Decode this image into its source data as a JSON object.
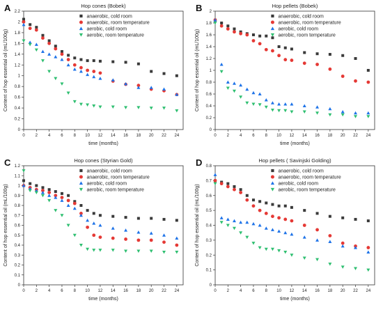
{
  "colors": {
    "anaerobic_cold": "#3a3a3a",
    "anaerobic_room": "#e53935",
    "aerobic_cold": "#1e73e8",
    "aerobic_room": "#2fbf71"
  },
  "chart_data": [
    {
      "panel_label": "A",
      "type": "scatter",
      "title": "Hop cones (Bobek)",
      "xlabel": "time (months)",
      "ylabel": "Content of hop essential oil (mL/100g)",
      "xlim": [
        0,
        25
      ],
      "ylim": [
        0,
        2.2
      ],
      "xticks": [
        0,
        2,
        4,
        6,
        8,
        10,
        12,
        14,
        16,
        18,
        20,
        22,
        24
      ],
      "yticks": [
        0,
        0.2,
        0.4,
        0.6,
        0.8,
        1,
        1.2,
        1.4,
        1.6,
        1.8,
        2,
        2.2
      ],
      "x": [
        0,
        1,
        2,
        3,
        4,
        5,
        6,
        7,
        8,
        9,
        10,
        11,
        12,
        14,
        16,
        18,
        20,
        22,
        24
      ],
      "legend_position": "top-right",
      "series": [
        {
          "name": "anaerobic, cold room",
          "marker": "square",
          "color_key": "anaerobic_cold",
          "values": [
            2.05,
            1.95,
            1.9,
            1.75,
            1.65,
            1.55,
            1.45,
            1.38,
            1.33,
            1.3,
            1.28,
            1.28,
            1.27,
            1.26,
            1.25,
            1.22,
            1.08,
            1.04,
            1.0
          ]
        },
        {
          "name": "anaerobic, room temperature",
          "marker": "circle",
          "color_key": "anaerobic_room",
          "values": [
            2.0,
            1.88,
            1.85,
            1.7,
            1.6,
            1.5,
            1.4,
            1.3,
            1.2,
            1.15,
            1.1,
            1.08,
            1.05,
            0.9,
            0.84,
            0.82,
            0.75,
            0.72,
            0.65
          ]
        },
        {
          "name": "aerobic, cold room",
          "marker": "triangle-up",
          "color_key": "aerobic_cold",
          "values": [
            1.95,
            1.62,
            1.58,
            1.45,
            1.4,
            1.35,
            1.3,
            1.2,
            1.12,
            1.08,
            1.02,
            0.98,
            0.95,
            0.92,
            0.85,
            0.78,
            0.78,
            0.75,
            0.65
          ]
        },
        {
          "name": "aerobic, room temperature",
          "marker": "triangle-down",
          "color_key": "aerobic_room",
          "values": [
            1.65,
            1.58,
            1.48,
            1.28,
            1.08,
            0.95,
            0.85,
            0.68,
            0.52,
            0.47,
            0.46,
            0.44,
            0.42,
            0.42,
            0.41,
            0.41,
            0.4,
            0.4,
            0.35
          ]
        }
      ]
    },
    {
      "panel_label": "B",
      "type": "scatter",
      "title": "Hop pellets (Bobek)",
      "xlabel": "time (months)",
      "ylabel": "Content of hop essential oil (mL/100g)",
      "xlim": [
        0,
        25
      ],
      "ylim": [
        0,
        2
      ],
      "xticks": [
        0,
        2,
        4,
        6,
        8,
        10,
        12,
        14,
        16,
        18,
        20,
        22,
        24
      ],
      "yticks": [
        0,
        0.2,
        0.4,
        0.6,
        0.8,
        1,
        1.2,
        1.4,
        1.6,
        1.8,
        2
      ],
      "x": [
        0,
        1,
        2,
        3,
        4,
        5,
        6,
        7,
        8,
        9,
        10,
        11,
        12,
        14,
        16,
        18,
        20,
        22,
        24
      ],
      "legend_position": "top-right",
      "series": [
        {
          "name": "anaerobic, cold room",
          "marker": "square",
          "color_key": "anaerobic_cold",
          "values": [
            1.85,
            1.8,
            1.75,
            1.7,
            1.65,
            1.62,
            1.6,
            1.58,
            1.58,
            1.55,
            1.4,
            1.38,
            1.36,
            1.3,
            1.28,
            1.27,
            1.25,
            1.2,
            1.0
          ]
        },
        {
          "name": "anaerobic, room temperature",
          "marker": "circle",
          "color_key": "anaerobic_room",
          "values": [
            1.85,
            1.75,
            1.7,
            1.65,
            1.62,
            1.6,
            1.5,
            1.45,
            1.35,
            1.33,
            1.25,
            1.18,
            1.17,
            1.12,
            1.1,
            1.02,
            0.9,
            0.82,
            0.8
          ]
        },
        {
          "name": "aerobic, cold room",
          "marker": "triangle-up",
          "color_key": "aerobic_cold",
          "values": [
            1.85,
            1.1,
            0.8,
            0.78,
            0.75,
            0.68,
            0.62,
            0.6,
            0.5,
            0.45,
            0.43,
            0.43,
            0.43,
            0.4,
            0.38,
            0.35,
            0.3,
            0.28,
            0.28
          ]
        },
        {
          "name": "aerobic, room temperature",
          "marker": "triangle-down",
          "color_key": "aerobic_room",
          "values": [
            1.8,
            0.98,
            0.7,
            0.65,
            0.55,
            0.45,
            0.43,
            0.42,
            0.38,
            0.33,
            0.32,
            0.32,
            0.3,
            0.3,
            0.28,
            0.25,
            0.25,
            0.22,
            0.22
          ]
        }
      ]
    },
    {
      "panel_label": "C",
      "type": "scatter",
      "title": "Hop cones (Styrian Gold)",
      "xlabel": "time (months)",
      "ylabel": "Content of hop essential oil (mL/100g)",
      "xlim": [
        0,
        25
      ],
      "ylim": [
        0,
        1.2
      ],
      "xticks": [
        0,
        2,
        4,
        6,
        8,
        10,
        12,
        14,
        16,
        18,
        20,
        22,
        24
      ],
      "yticks": [
        0,
        0.1,
        0.2,
        0.3,
        0.4,
        0.5,
        0.6,
        0.7,
        0.8,
        0.9,
        1,
        1.1,
        1.2
      ],
      "x": [
        0,
        1,
        2,
        3,
        4,
        5,
        6,
        7,
        8,
        9,
        10,
        11,
        12,
        14,
        16,
        18,
        20,
        22,
        24
      ],
      "legend_position": "top-right",
      "series": [
        {
          "name": "anaerobic, cold room",
          "marker": "square",
          "color_key": "anaerobic_cold",
          "values": [
            1.05,
            1.02,
            1.0,
            0.98,
            0.96,
            0.94,
            0.92,
            0.9,
            0.84,
            0.8,
            0.75,
            0.72,
            0.7,
            0.69,
            0.68,
            0.67,
            0.67,
            0.66,
            0.65
          ]
        },
        {
          "name": "anaerobic, room temperature",
          "marker": "circle",
          "color_key": "anaerobic_room",
          "values": [
            1.0,
            0.98,
            0.96,
            0.95,
            0.93,
            0.9,
            0.88,
            0.85,
            0.82,
            0.72,
            0.58,
            0.5,
            0.48,
            0.47,
            0.46,
            0.45,
            0.45,
            0.43,
            0.4
          ]
        },
        {
          "name": "aerobic, cold room",
          "marker": "triangle-up",
          "color_key": "aerobic_cold",
          "values": [
            1.0,
            0.97,
            0.95,
            0.93,
            0.9,
            0.88,
            0.85,
            0.8,
            0.77,
            0.7,
            0.65,
            0.62,
            0.6,
            0.57,
            0.55,
            0.53,
            0.52,
            0.5,
            0.47
          ]
        },
        {
          "name": "aerobic, room temperature",
          "marker": "triangle-down",
          "color_key": "aerobic_room",
          "values": [
            1.15,
            0.95,
            0.93,
            0.9,
            0.85,
            0.75,
            0.7,
            0.6,
            0.5,
            0.4,
            0.36,
            0.35,
            0.35,
            0.35,
            0.34,
            0.34,
            0.34,
            0.33,
            0.33
          ]
        }
      ]
    },
    {
      "panel_label": "D",
      "type": "scatter",
      "title": "Hop pellets ( Savinjski Golding)",
      "xlabel": "time (months)",
      "ylabel": "Content of hop essential oil (mL/100g)",
      "xlim": [
        0,
        25
      ],
      "ylim": [
        0,
        0.8
      ],
      "xticks": [
        0,
        2,
        4,
        6,
        8,
        10,
        12,
        14,
        16,
        18,
        20,
        22,
        24
      ],
      "yticks": [
        0,
        0.1,
        0.2,
        0.3,
        0.4,
        0.5,
        0.6,
        0.7,
        0.8
      ],
      "x": [
        0,
        1,
        2,
        3,
        4,
        5,
        6,
        7,
        8,
        9,
        10,
        11,
        12,
        14,
        16,
        18,
        20,
        22,
        24
      ],
      "legend_position": "top-right",
      "series": [
        {
          "name": "anaerobic, cold room",
          "marker": "square",
          "color_key": "anaerobic_cold",
          "values": [
            0.7,
            0.69,
            0.68,
            0.66,
            0.64,
            0.6,
            0.57,
            0.56,
            0.55,
            0.54,
            0.53,
            0.53,
            0.52,
            0.5,
            0.48,
            0.46,
            0.45,
            0.44,
            0.43
          ]
        },
        {
          "name": "anaerobic, room temperature",
          "marker": "circle",
          "color_key": "anaerobic_room",
          "values": [
            0.7,
            0.68,
            0.66,
            0.64,
            0.62,
            0.57,
            0.53,
            0.5,
            0.48,
            0.46,
            0.45,
            0.44,
            0.43,
            0.4,
            0.37,
            0.33,
            0.28,
            0.26,
            0.25
          ]
        },
        {
          "name": "aerobic, cold room",
          "marker": "triangle-up",
          "color_key": "aerobic_cold",
          "values": [
            0.74,
            0.45,
            0.44,
            0.43,
            0.42,
            0.42,
            0.41,
            0.4,
            0.38,
            0.37,
            0.36,
            0.35,
            0.34,
            0.32,
            0.3,
            0.29,
            0.26,
            0.25,
            0.22
          ]
        },
        {
          "name": "aerobic, room temperature",
          "marker": "triangle-down",
          "color_key": "aerobic_room",
          "values": [
            0.68,
            0.42,
            0.4,
            0.38,
            0.35,
            0.32,
            0.28,
            0.25,
            0.24,
            0.24,
            0.23,
            0.22,
            0.2,
            0.18,
            0.17,
            0.14,
            0.12,
            0.11,
            0.1
          ]
        }
      ]
    }
  ]
}
